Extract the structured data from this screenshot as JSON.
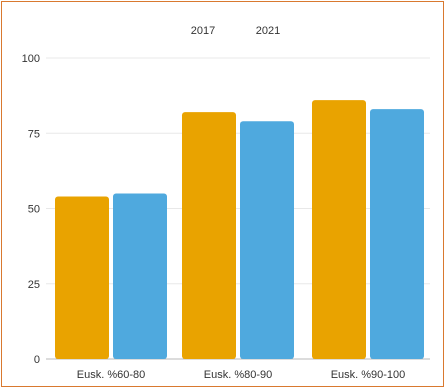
{
  "chart_data": {
    "type": "bar",
    "categories": [
      "Eusk. %60-80",
      "Eusk. %80-90",
      "Eusk. %90-100"
    ],
    "series": [
      {
        "name": "2017",
        "values": [
          54,
          82,
          86
        ],
        "color": "#e9a300"
      },
      {
        "name": "2021",
        "values": [
          55,
          79,
          83
        ],
        "color": "#4fa9de"
      }
    ],
    "ylim": [
      0,
      100
    ],
    "yticks": [
      0,
      25,
      50,
      75,
      100
    ],
    "legend_position": "top",
    "grid": true,
    "title": "",
    "xlabel": "",
    "ylabel": ""
  },
  "frame": {
    "border_color": "#d9792f"
  }
}
